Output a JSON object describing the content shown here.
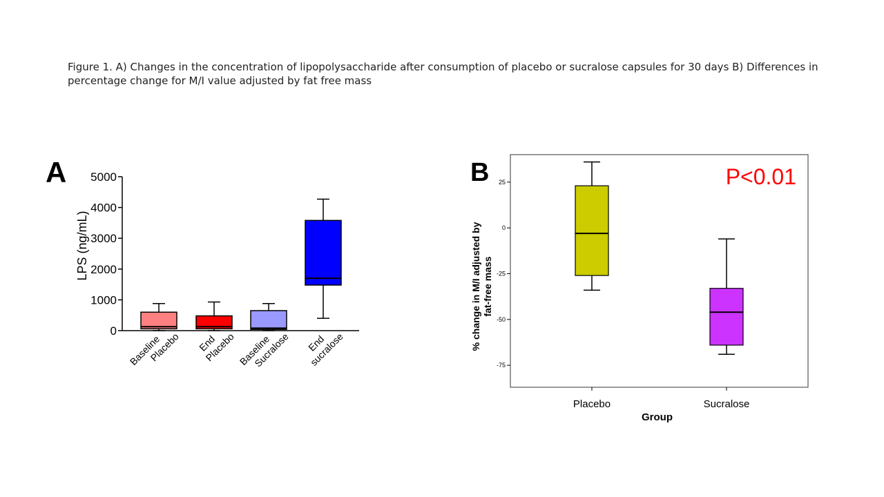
{
  "figure_caption": "Figure 1. A) Changes in the concentration of lipopolysaccharide after consumption of placebo or sucralose capsules for 30 days B) Differences in percentage change for M/I value adjusted by fat free mass",
  "panel_a_letter": "A",
  "panel_b_letter": "B",
  "chart_data": [
    {
      "type": "box",
      "panel": "A",
      "ylabel": "LPS (ng/mL)",
      "ylim": [
        0,
        5000
      ],
      "yticks": [
        "0",
        "1000",
        "2000",
        "3000",
        "4000",
        "5000"
      ],
      "yticks_values": [
        0,
        1000,
        2000,
        3000,
        4000,
        5000
      ],
      "categories": [
        [
          "Baseline",
          "Placebo"
        ],
        [
          "End",
          "Placebo"
        ],
        [
          "Baseline",
          "Sucralose"
        ],
        [
          "End",
          "sucralose"
        ]
      ],
      "colors": [
        "#ff8080",
        "#ff0000",
        "#9999ff",
        "#0000ff"
      ],
      "boxes": [
        {
          "whisker_low": 0,
          "q1": 60,
          "median": 130,
          "q3": 600,
          "whisker_high": 880
        },
        {
          "whisker_low": 0,
          "q1": 60,
          "median": 130,
          "q3": 480,
          "whisker_high": 930
        },
        {
          "whisker_low": 0,
          "q1": 40,
          "median": 80,
          "q3": 650,
          "whisker_high": 880
        },
        {
          "whisker_low": 400,
          "q1": 1480,
          "median": 1700,
          "q3": 3580,
          "whisker_high": 4270
        }
      ]
    },
    {
      "type": "box",
      "panel": "B",
      "ylabel": "% change in M/I adjusted by fat-free mass",
      "ylabel_lines": [
        "% change in M/I adjusted by",
        "fat-free mass"
      ],
      "xlabel": "Group",
      "ylim": [
        -87,
        40
      ],
      "yticks": [
        "25",
        "0",
        "-25",
        "-50",
        "-75"
      ],
      "yticks_values": [
        25,
        0,
        -25,
        -50,
        -75
      ],
      "categories": [
        "Placebo",
        "Sucralose"
      ],
      "colors": [
        "#cccc00",
        "#cc33ff"
      ],
      "boxes": [
        {
          "whisker_low": -34,
          "q1": -26,
          "median": -3,
          "q3": 23,
          "whisker_high": 36
        },
        {
          "whisker_low": -69,
          "q1": -64,
          "median": -46,
          "q3": -33,
          "whisker_high": -6
        }
      ],
      "annotation": "P<0.01",
      "annotation_color": "#ff0000"
    }
  ]
}
